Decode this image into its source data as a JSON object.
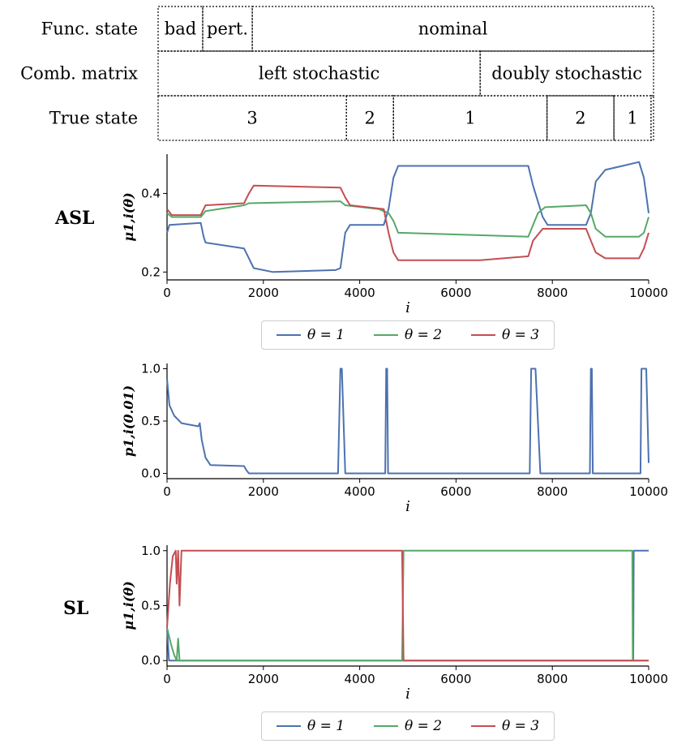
{
  "timeline": {
    "rows": [
      {
        "label": "Func. state",
        "segments": [
          {
            "label": "bad",
            "start": 0,
            "end": 900
          },
          {
            "label": "pert.",
            "start": 900,
            "end": 1900
          },
          {
            "label": "nominal",
            "start": 1900,
            "end": 10000
          }
        ]
      },
      {
        "label": "Comb. matrix",
        "segments": [
          {
            "label": "left stochastic",
            "start": 0,
            "end": 6500
          },
          {
            "label": "doubly stochastic",
            "start": 6500,
            "end": 10000
          }
        ]
      },
      {
        "label": "True state",
        "segments": [
          {
            "label": "3",
            "start": 0,
            "end": 3800
          },
          {
            "label": "2",
            "start": 3800,
            "end": 4750
          },
          {
            "label": "1",
            "start": 4750,
            "end": 7850
          },
          {
            "label": "2",
            "start": 7850,
            "end": 9200
          },
          {
            "label": "1",
            "start": 9200,
            "end": 9950
          },
          {
            "label": "",
            "start": 9950,
            "end": 10000
          }
        ]
      }
    ]
  },
  "side_labels": {
    "asl": "ASL",
    "sl": "SL"
  },
  "legend": {
    "theta1": "θ = 1",
    "theta2": "θ = 2",
    "theta3": "θ = 3"
  },
  "colors": {
    "theta1": "#4c72b0",
    "theta2": "#55a868",
    "theta3": "#c44e52"
  },
  "chart_data": [
    {
      "type": "line",
      "name": "ASL beliefs",
      "xlabel": "i",
      "ylabel": "μ1,i(θ)",
      "xlim": [
        0,
        10000
      ],
      "ylim": [
        0.18,
        0.5
      ],
      "xticks": [
        "0",
        "2000",
        "4000",
        "6000",
        "8000",
        "10000"
      ],
      "yticks": [
        "0.2",
        "0.4"
      ],
      "series": [
        {
          "name": "θ = 1",
          "points": [
            [
              0,
              0.3
            ],
            [
              50,
              0.32
            ],
            [
              700,
              0.325
            ],
            [
              760,
              0.29
            ],
            [
              800,
              0.275
            ],
            [
              1600,
              0.26
            ],
            [
              1700,
              0.235
            ],
            [
              1800,
              0.21
            ],
            [
              2200,
              0.2
            ],
            [
              3500,
              0.205
            ],
            [
              3600,
              0.21
            ],
            [
              3700,
              0.3
            ],
            [
              3800,
              0.32
            ],
            [
              4500,
              0.32
            ],
            [
              4600,
              0.36
            ],
            [
              4700,
              0.44
            ],
            [
              4800,
              0.47
            ],
            [
              7500,
              0.47
            ],
            [
              7600,
              0.42
            ],
            [
              7800,
              0.34
            ],
            [
              7900,
              0.32
            ],
            [
              8700,
              0.32
            ],
            [
              8800,
              0.35
            ],
            [
              8900,
              0.43
            ],
            [
              9100,
              0.46
            ],
            [
              9800,
              0.48
            ],
            [
              9900,
              0.44
            ],
            [
              10000,
              0.35
            ]
          ]
        },
        {
          "name": "θ = 2",
          "points": [
            [
              0,
              0.35
            ],
            [
              100,
              0.34
            ],
            [
              700,
              0.34
            ],
            [
              800,
              0.355
            ],
            [
              1600,
              0.37
            ],
            [
              1700,
              0.375
            ],
            [
              3600,
              0.38
            ],
            [
              3700,
              0.37
            ],
            [
              4400,
              0.36
            ],
            [
              4600,
              0.35
            ],
            [
              4700,
              0.33
            ],
            [
              4800,
              0.3
            ],
            [
              7500,
              0.29
            ],
            [
              7700,
              0.35
            ],
            [
              7850,
              0.365
            ],
            [
              8700,
              0.37
            ],
            [
              8800,
              0.35
            ],
            [
              8900,
              0.31
            ],
            [
              9100,
              0.29
            ],
            [
              9800,
              0.29
            ],
            [
              9900,
              0.3
            ],
            [
              10000,
              0.34
            ]
          ]
        },
        {
          "name": "θ = 3",
          "points": [
            [
              0,
              0.36
            ],
            [
              100,
              0.345
            ],
            [
              700,
              0.345
            ],
            [
              800,
              0.37
            ],
            [
              1600,
              0.375
            ],
            [
              1700,
              0.4
            ],
            [
              1800,
              0.42
            ],
            [
              3600,
              0.415
            ],
            [
              3700,
              0.39
            ],
            [
              3800,
              0.37
            ],
            [
              4500,
              0.36
            ],
            [
              4600,
              0.3
            ],
            [
              4700,
              0.25
            ],
            [
              4800,
              0.23
            ],
            [
              6500,
              0.23
            ],
            [
              7500,
              0.24
            ],
            [
              7600,
              0.28
            ],
            [
              7800,
              0.31
            ],
            [
              8700,
              0.31
            ],
            [
              8800,
              0.28
            ],
            [
              8900,
              0.25
            ],
            [
              9100,
              0.235
            ],
            [
              9800,
              0.235
            ],
            [
              9900,
              0.26
            ],
            [
              10000,
              0.3
            ]
          ]
        }
      ]
    },
    {
      "type": "line",
      "name": "Instantaneous p-value",
      "xlabel": "i",
      "ylabel": "p1,i(0.01)",
      "xlim": [
        0,
        10000
      ],
      "ylim": [
        -0.05,
        1.05
      ],
      "xticks": [
        "0",
        "2000",
        "4000",
        "6000",
        "8000",
        "10000"
      ],
      "yticks": [
        "0.0",
        "0.5",
        "1.0"
      ],
      "series": [
        {
          "name": "θ = 1",
          "points": [
            [
              0,
              0.9
            ],
            [
              50,
              0.65
            ],
            [
              150,
              0.55
            ],
            [
              300,
              0.48
            ],
            [
              650,
              0.45
            ],
            [
              680,
              0.48
            ],
            [
              720,
              0.32
            ],
            [
              800,
              0.15
            ],
            [
              900,
              0.08
            ],
            [
              1600,
              0.07
            ],
            [
              1650,
              0.03
            ],
            [
              1700,
              0.0
            ],
            [
              3550,
              0.0
            ],
            [
              3600,
              1.0
            ],
            [
              3630,
              1.0
            ],
            [
              3700,
              0.0
            ],
            [
              4530,
              0.0
            ],
            [
              4550,
              1.0
            ],
            [
              4570,
              1.0
            ],
            [
              4590,
              0.0
            ],
            [
              7530,
              0.0
            ],
            [
              7560,
              1.0
            ],
            [
              7650,
              1.0
            ],
            [
              7750,
              0.0
            ],
            [
              8780,
              0.0
            ],
            [
              8800,
              1.0
            ],
            [
              8820,
              1.0
            ],
            [
              8840,
              0.0
            ],
            [
              9830,
              0.0
            ],
            [
              9850,
              1.0
            ],
            [
              9950,
              1.0
            ],
            [
              10000,
              0.1
            ]
          ]
        }
      ]
    },
    {
      "type": "line",
      "name": "SL beliefs",
      "xlabel": "i",
      "ylabel": "μ1,i(θ)",
      "xlim": [
        0,
        10000
      ],
      "ylim": [
        -0.05,
        1.05
      ],
      "xticks": [
        "0",
        "2000",
        "4000",
        "6000",
        "8000",
        "10000"
      ],
      "yticks": [
        "0.0",
        "0.5",
        "1.0"
      ],
      "series": [
        {
          "name": "θ = 1",
          "points": [
            [
              0,
              0.3
            ],
            [
              40,
              0.0
            ],
            [
              9680,
              0.0
            ],
            [
              9690,
              1.0
            ],
            [
              10000,
              1.0
            ]
          ]
        },
        {
          "name": "θ = 2",
          "points": [
            [
              0,
              0.3
            ],
            [
              80,
              0.15
            ],
            [
              150,
              0.05
            ],
            [
              200,
              0.0
            ],
            [
              230,
              0.2
            ],
            [
              260,
              0.0
            ],
            [
              400,
              0.0
            ],
            [
              4880,
              0.0
            ],
            [
              4910,
              1.0
            ],
            [
              9660,
              1.0
            ],
            [
              9670,
              0.0
            ],
            [
              10000,
              0.0
            ]
          ]
        },
        {
          "name": "θ = 3",
          "points": [
            [
              0,
              0.3
            ],
            [
              60,
              0.7
            ],
            [
              120,
              0.95
            ],
            [
              180,
              1.0
            ],
            [
              200,
              0.7
            ],
            [
              230,
              1.0
            ],
            [
              260,
              0.5
            ],
            [
              300,
              1.0
            ],
            [
              4880,
              1.0
            ],
            [
              4910,
              0.0
            ],
            [
              10000,
              0.0
            ]
          ]
        }
      ]
    }
  ]
}
